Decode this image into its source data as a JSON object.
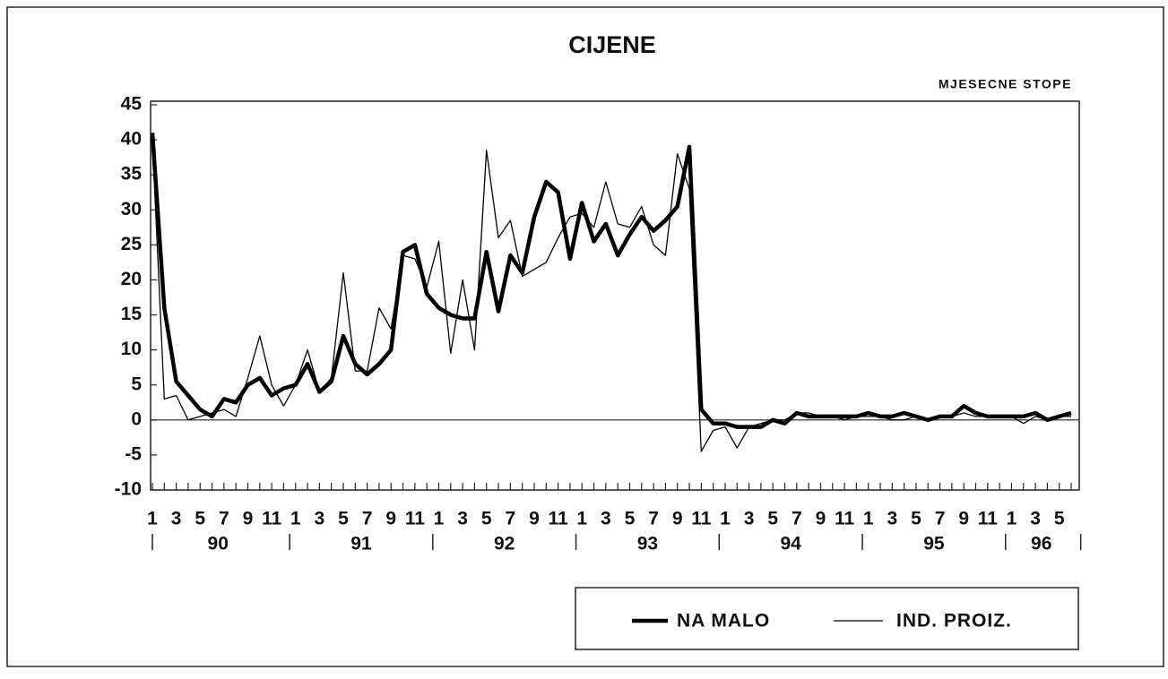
{
  "chart_data": {
    "type": "line",
    "title": "CIJENE",
    "subtitle": "MJESECNE STOPE",
    "categories": [
      "1",
      null,
      "3",
      null,
      "5",
      null,
      "7",
      null,
      "9",
      null,
      "11",
      null,
      "1",
      null,
      "3",
      null,
      "5",
      null,
      "7",
      null,
      "9",
      null,
      "11",
      null,
      "1",
      null,
      "3",
      null,
      "5",
      null,
      "7",
      null,
      "9",
      null,
      "11",
      null,
      "1",
      null,
      "3",
      null,
      "5",
      null,
      "7",
      null,
      "9",
      null,
      "11",
      null,
      "1",
      null,
      "3",
      null,
      "5",
      null,
      "7",
      null,
      "9",
      null,
      "11",
      null,
      "1",
      null,
      "3",
      null,
      "5",
      null,
      "7",
      null,
      "9",
      null,
      "11",
      null,
      "1",
      null,
      "3",
      null,
      "5",
      null
    ],
    "years": [
      "90",
      "91",
      "92",
      "93",
      "94",
      "95",
      "96"
    ],
    "series": [
      {
        "name": "NA MALO",
        "color": "#000000",
        "width": "thick",
        "values": [
          41,
          16,
          5.5,
          3.5,
          1.5,
          0.5,
          3,
          2.5,
          5,
          6,
          3.5,
          4.5,
          5,
          8,
          4,
          5.5,
          12,
          8,
          6.5,
          8,
          10,
          24,
          25,
          18,
          16,
          15,
          14.5,
          14.5,
          24,
          15.5,
          23.5,
          21,
          29,
          34,
          32.5,
          23,
          31,
          25.5,
          28,
          23.5,
          26.5,
          29,
          27,
          28.5,
          30.5,
          39,
          1.5,
          -0.5,
          -0.5,
          -1,
          -1,
          -1,
          0,
          -0.5,
          1,
          0.5,
          0.5,
          0.5,
          0.5,
          0.5,
          1,
          0.5,
          0.5,
          1,
          0.5,
          0,
          0.5,
          0.5,
          2,
          1,
          0.5,
          0.5,
          0.5,
          0.5,
          1,
          0,
          0.5,
          1
        ]
      },
      {
        "name": "IND. PROIZ.",
        "color": "#000000",
        "width": "thin",
        "values": [
          40,
          3,
          3.5,
          0,
          0.5,
          1,
          1.5,
          0.5,
          6,
          12,
          5,
          2,
          5,
          10,
          4,
          6,
          21,
          7,
          7,
          16,
          13,
          23.5,
          23,
          19,
          25.5,
          9.5,
          20,
          10,
          38.5,
          26,
          28.5,
          20.5,
          21.5,
          22.5,
          26,
          29,
          29.5,
          27.5,
          34,
          28,
          27.5,
          30.5,
          25,
          23.5,
          38,
          33,
          -4.5,
          -1.5,
          -1,
          -4,
          -1,
          -0.5,
          0,
          0,
          1,
          1,
          0.5,
          0.5,
          0,
          0.5,
          0.5,
          0.5,
          0,
          0,
          0.5,
          0,
          0.5,
          0.5,
          1,
          0.5,
          0.5,
          0.5,
          0.5,
          -0.5,
          0.5,
          0,
          0.5,
          0.5
        ]
      }
    ],
    "ylim": [
      -10,
      45
    ],
    "yticks": [
      -10,
      -5,
      0,
      5,
      10,
      15,
      20,
      25,
      30,
      35,
      40,
      45
    ],
    "zero_line": true,
    "legend": "bottom-right"
  }
}
